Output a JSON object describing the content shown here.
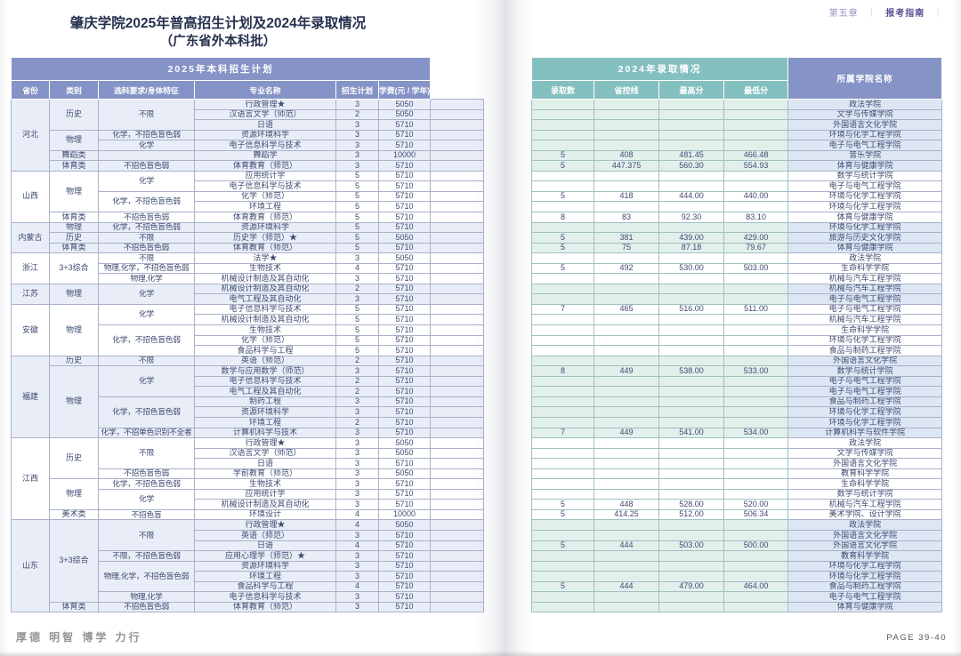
{
  "page_header": {
    "chapter": "第五章",
    "section": "报考指南",
    "separator": "｜"
  },
  "title": {
    "line1": "肇庆学院2025年普高招生计划及2024年录取情况",
    "line2": "（广东省外本科批）"
  },
  "colors": {
    "header_blue": "#8593c6",
    "header_teal": "#85c0c1",
    "tint_blue": "#e9edf7",
    "tint_teal": "#e2f0ec"
  },
  "footer": {
    "motto": "厚德 明智 博学 力行",
    "page_label": "PAGE 39-40"
  },
  "table": {
    "left_header": "2025年本科招生计划",
    "right_header": "2024年录取情况",
    "college_header": "所属学院名称",
    "columns_left": [
      "省份",
      "类别",
      "选科要求/身体特征",
      "专业名称",
      "招生计划",
      "学费(元 / 学年)"
    ],
    "columns_right": [
      "录取数",
      "省控线",
      "最高分",
      "最低分"
    ],
    "row_columns": [
      "专业名称",
      "招生计划",
      "学费",
      "录取数",
      "省控线",
      "最高分",
      "最低分",
      "所属学院名称"
    ],
    "provinces": [
      {
        "name": "河北",
        "tinted": true,
        "categories": [
          {
            "label": "历史",
            "reqs": [
              {
                "label": "不限",
                "rows": [
                  [
                    "行政管理★",
                    3,
                    5050,
                    "",
                    "",
                    "",
                    "",
                    "政法学院"
                  ],
                  [
                    "汉语言文学（师范）",
                    2,
                    5050,
                    "",
                    "",
                    "",
                    "",
                    "文学与传媒学院"
                  ],
                  [
                    "日语",
                    3,
                    5710,
                    "",
                    "",
                    "",
                    "",
                    "外国语言文化学院"
                  ]
                ]
              }
            ]
          },
          {
            "label": "物理",
            "reqs": [
              {
                "label": "化学，不招色盲色弱",
                "rows": [
                  [
                    "资源环境科学",
                    3,
                    5710,
                    "",
                    "",
                    "",
                    "",
                    "环境与化学工程学院"
                  ]
                ]
              },
              {
                "label": "化学",
                "rows": [
                  [
                    "电子信息科学与技术",
                    3,
                    5710,
                    "",
                    "",
                    "",
                    "",
                    "电子与电气工程学院"
                  ]
                ]
              }
            ]
          },
          {
            "label": "舞蹈类",
            "reqs": [
              {
                "label": "",
                "rows": [
                  [
                    "舞蹈学",
                    3,
                    10000,
                    "5",
                    "408",
                    "481.45",
                    "466.48",
                    "音乐学院"
                  ]
                ]
              }
            ]
          },
          {
            "label": "体育类",
            "reqs": [
              {
                "label": "不招色盲色弱",
                "rows": [
                  [
                    "体育教育（师范）",
                    3,
                    5710,
                    "5",
                    "447.375",
                    "560.30",
                    "554.93",
                    "体育与健康学院"
                  ]
                ]
              }
            ]
          }
        ]
      },
      {
        "name": "山西",
        "tinted": false,
        "categories": [
          {
            "label": "物理",
            "reqs": [
              {
                "label": "化学",
                "rows": [
                  [
                    "应用统计学",
                    5,
                    5710,
                    "",
                    "",
                    "",
                    "",
                    "数学与统计学院"
                  ],
                  [
                    "电子信息科学与技术",
                    5,
                    5710,
                    "",
                    "",
                    "",
                    "",
                    "电子与电气工程学院"
                  ]
                ]
              },
              {
                "label": "化学，不招色盲色弱",
                "rows": [
                  [
                    "化学（师范）",
                    5,
                    5710,
                    "5",
                    "418",
                    "444.00",
                    "440.00",
                    "环境与化学工程学院"
                  ],
                  [
                    "环境工程",
                    5,
                    5710,
                    "",
                    "",
                    "",
                    "",
                    "环境与化学工程学院"
                  ]
                ]
              }
            ]
          },
          {
            "label": "体育类",
            "reqs": [
              {
                "label": "不招色盲色弱",
                "rows": [
                  [
                    "体育教育（师范）",
                    5,
                    5710,
                    "8",
                    "83",
                    "92.30",
                    "83.10",
                    "体育与健康学院"
                  ]
                ]
              }
            ]
          }
        ]
      },
      {
        "name": "内蒙古",
        "tinted": true,
        "categories": [
          {
            "label": "物理",
            "reqs": [
              {
                "label": "化学，不招色盲色弱",
                "rows": [
                  [
                    "资源环境科学",
                    5,
                    5710,
                    "",
                    "",
                    "",
                    "",
                    "环境与化学工程学院"
                  ]
                ]
              }
            ]
          },
          {
            "label": "历史",
            "reqs": [
              {
                "label": "不限",
                "rows": [
                  [
                    "历史学（师范）★",
                    5,
                    5050,
                    "5",
                    "381",
                    "439.00",
                    "429.00",
                    "旅游与历史文化学院"
                  ]
                ]
              }
            ]
          },
          {
            "label": "体育类",
            "reqs": [
              {
                "label": "不招色盲色弱",
                "rows": [
                  [
                    "体育教育（师范）",
                    5,
                    5710,
                    "5",
                    "75",
                    "87.18",
                    "79.67",
                    "体育与健康学院"
                  ]
                ]
              }
            ]
          }
        ]
      },
      {
        "name": "浙江",
        "tinted": false,
        "categories": [
          {
            "label": "3+3综合",
            "reqs": [
              {
                "label": "不限",
                "rows": [
                  [
                    "法学★",
                    3,
                    5050,
                    "",
                    "",
                    "",
                    "",
                    "政法学院"
                  ]
                ]
              },
              {
                "label": "物理,化学，不招色盲色弱",
                "rows": [
                  [
                    "生物技术",
                    4,
                    5710,
                    "5",
                    "492",
                    "530.00",
                    "503.00",
                    "生命科学学院"
                  ]
                ]
              },
              {
                "label": "物理,化学",
                "rows": [
                  [
                    "机械设计制造及其自动化",
                    3,
                    5710,
                    "",
                    "",
                    "",
                    "",
                    "机械与汽车工程学院"
                  ]
                ]
              }
            ]
          }
        ]
      },
      {
        "name": "江苏",
        "tinted": true,
        "categories": [
          {
            "label": "物理",
            "reqs": [
              {
                "label": "化学",
                "rows": [
                  [
                    "机械设计制造及其自动化",
                    2,
                    5710,
                    "",
                    "",
                    "",
                    "",
                    "机械与汽车工程学院"
                  ],
                  [
                    "电气工程及其自动化",
                    3,
                    5710,
                    "",
                    "",
                    "",
                    "",
                    "电子与电气工程学院"
                  ]
                ]
              }
            ]
          }
        ]
      },
      {
        "name": "安徽",
        "tinted": false,
        "categories": [
          {
            "label": "物理",
            "reqs": [
              {
                "label": "化学",
                "rows": [
                  [
                    "电子信息科学与技术",
                    5,
                    5710,
                    "7",
                    "465",
                    "516.00",
                    "511.00",
                    "电子与电气工程学院"
                  ],
                  [
                    "机械设计制造及其自动化",
                    5,
                    5710,
                    "",
                    "",
                    "",
                    "",
                    "机械与汽车工程学院"
                  ]
                ]
              },
              {
                "label": "化学，不招色盲色弱",
                "rows": [
                  [
                    "生物技术",
                    5,
                    5710,
                    "",
                    "",
                    "",
                    "",
                    "生命科学学院"
                  ],
                  [
                    "化学（师范）",
                    5,
                    5710,
                    "",
                    "",
                    "",
                    "",
                    "环境与化学工程学院"
                  ],
                  [
                    "食品科学与工程",
                    5,
                    5710,
                    "",
                    "",
                    "",
                    "",
                    "食品与制药工程学院"
                  ]
                ]
              }
            ]
          }
        ]
      },
      {
        "name": "福建",
        "tinted": true,
        "categories": [
          {
            "label": "历史",
            "reqs": [
              {
                "label": "不限",
                "rows": [
                  [
                    "英语（师范）",
                    2,
                    5710,
                    "",
                    "",
                    "",
                    "",
                    "外国语言文化学院"
                  ]
                ]
              }
            ]
          },
          {
            "label": "物理",
            "reqs": [
              {
                "label": "化学",
                "rows": [
                  [
                    "数学与应用数学（师范）",
                    3,
                    5710,
                    "8",
                    "449",
                    "538.00",
                    "533.00",
                    "数学与统计学院"
                  ],
                  [
                    "电子信息科学与技术",
                    2,
                    5710,
                    "",
                    "",
                    "",
                    "",
                    "电子与电气工程学院"
                  ],
                  [
                    "电气工程及其自动化",
                    2,
                    5710,
                    "",
                    "",
                    "",
                    "",
                    "电子与电气工程学院"
                  ]
                ]
              },
              {
                "label": "化学，不招色盲色弱",
                "rows": [
                  [
                    "制药工程",
                    3,
                    5710,
                    "",
                    "",
                    "",
                    "",
                    "食品与制药工程学院"
                  ],
                  [
                    "资源环境科学",
                    3,
                    5710,
                    "",
                    "",
                    "",
                    "",
                    "环境与化学工程学院"
                  ],
                  [
                    "环境工程",
                    2,
                    5710,
                    "",
                    "",
                    "",
                    "",
                    "环境与化学工程学院"
                  ]
                ]
              },
              {
                "label": "化学，不招单色识别不全者",
                "rows": [
                  [
                    "计算机科学与技术",
                    3,
                    5710,
                    "7",
                    "449",
                    "541.00",
                    "534.00",
                    "计算机科学与软件学院"
                  ]
                ]
              }
            ]
          }
        ]
      },
      {
        "name": "江西",
        "tinted": false,
        "categories": [
          {
            "label": "历史",
            "reqs": [
              {
                "label": "不限",
                "rows": [
                  [
                    "行政管理★",
                    3,
                    5050,
                    "",
                    "",
                    "",
                    "",
                    "政法学院"
                  ],
                  [
                    "汉语言文学（师范）",
                    3,
                    5050,
                    "",
                    "",
                    "",
                    "",
                    "文学与传媒学院"
                  ],
                  [
                    "日语",
                    3,
                    5710,
                    "",
                    "",
                    "",
                    "",
                    "外国语言文化学院"
                  ]
                ]
              },
              {
                "label": "不招色盲色弱",
                "rows": [
                  [
                    "学前教育（师范）",
                    3,
                    5050,
                    "",
                    "",
                    "",
                    "",
                    "教育科学学院"
                  ]
                ]
              }
            ]
          },
          {
            "label": "物理",
            "reqs": [
              {
                "label": "化学，不招色盲色弱",
                "rows": [
                  [
                    "生物技术",
                    3,
                    5710,
                    "",
                    "",
                    "",
                    "",
                    "生命科学学院"
                  ]
                ]
              },
              {
                "label": "化学",
                "rows": [
                  [
                    "应用统计学",
                    3,
                    5710,
                    "",
                    "",
                    "",
                    "",
                    "数学与统计学院"
                  ],
                  [
                    "机械设计制造及其自动化",
                    3,
                    5710,
                    "5",
                    "448",
                    "528.00",
                    "520.00",
                    "机械与汽车工程学院"
                  ]
                ]
              }
            ]
          },
          {
            "label": "美术类",
            "reqs": [
              {
                "label": "不招色盲",
                "rows": [
                  [
                    "环境设计",
                    4,
                    10000,
                    "5",
                    "414.25",
                    "512.00",
                    "506.34",
                    "美术学院、设计学院"
                  ]
                ]
              }
            ]
          }
        ]
      },
      {
        "name": "山东",
        "tinted": true,
        "categories": [
          {
            "label": "3+3综合",
            "reqs": [
              {
                "label": "不限",
                "rows": [
                  [
                    "行政管理★",
                    4,
                    5050,
                    "",
                    "",
                    "",
                    "",
                    "政法学院"
                  ],
                  [
                    "英语（师范）",
                    3,
                    5710,
                    "",
                    "",
                    "",
                    "",
                    "外国语言文化学院"
                  ],
                  [
                    "日语",
                    4,
                    5710,
                    "5",
                    "444",
                    "503.00",
                    "500.00",
                    "外国语言文化学院"
                  ]
                ]
              },
              {
                "label": "不限，不招色盲色弱",
                "rows": [
                  [
                    "应用心理学（师范）★",
                    3,
                    5710,
                    "",
                    "",
                    "",
                    "",
                    "教育科学学院"
                  ]
                ]
              },
              {
                "label": "物理,化学，不招色盲色弱",
                "rows": [
                  [
                    "资源环境科学",
                    3,
                    5710,
                    "",
                    "",
                    "",
                    "",
                    "环境与化学工程学院"
                  ],
                  [
                    "环境工程",
                    3,
                    5710,
                    "",
                    "",
                    "",
                    "",
                    "环境与化学工程学院"
                  ],
                  [
                    "食品科学与工程",
                    4,
                    5710,
                    "5",
                    "444",
                    "479.00",
                    "464.00",
                    "食品与制药工程学院"
                  ]
                ]
              },
              {
                "label": "物理,化学",
                "rows": [
                  [
                    "电子信息科学与技术",
                    3,
                    5710,
                    "",
                    "",
                    "",
                    "",
                    "电子与电气工程学院"
                  ]
                ]
              }
            ]
          },
          {
            "label": "体育类",
            "reqs": [
              {
                "label": "不招色盲色弱",
                "rows": [
                  [
                    "体育教育（师范）",
                    3,
                    5710,
                    "",
                    "",
                    "",
                    "",
                    "体育与健康学院"
                  ]
                ]
              }
            ]
          }
        ]
      }
    ]
  }
}
